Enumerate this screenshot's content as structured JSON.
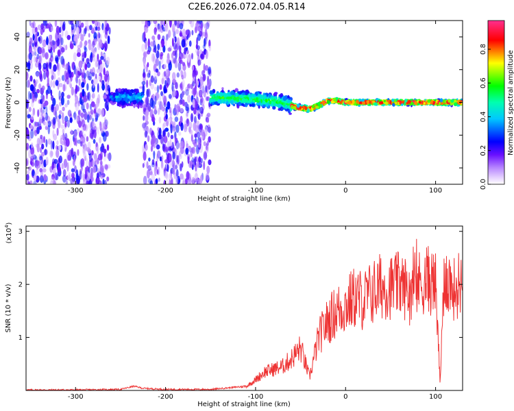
{
  "page_title": "C2E6.2026.072.04.05.R14",
  "colors": {
    "snr_line": "#ee3333",
    "spectrogram_low": "#7a00ff",
    "colorbar_stops": [
      "#ffffff",
      "#d9b8ff",
      "#a060ff",
      "#5a00ff",
      "#0000ff",
      "#00ffff",
      "#00ff00",
      "#ffff00",
      "#ff0000",
      "#ff2f8f"
    ]
  },
  "chart_data": [
    {
      "type": "heatmap",
      "title": "C2E6.2026.072.04.05.R14",
      "xlabel": "Height of straight line (km)",
      "ylabel": "Frequency (Hz)",
      "xlim": [
        -355,
        130
      ],
      "ylim": [
        -50,
        50
      ],
      "x_ticks": [
        -300,
        -200,
        -100,
        0,
        100
      ],
      "y_ticks": [
        -40,
        -20,
        0,
        20,
        40
      ],
      "colorbar": {
        "label": "Normalized spectral amplitude",
        "range": [
          0,
          0.97
        ],
        "ticks": [
          0.0,
          0.2,
          0.4,
          0.6,
          0.8
        ]
      },
      "regions": [
        {
          "x": [
            -355,
            -262
          ],
          "f_spread": 50,
          "amplitude": 0.2,
          "note": "scattered"
        },
        {
          "x": [
            -262,
            -255
          ],
          "f_spread": 8,
          "amplitude": 0.25
        },
        {
          "x": [
            -255,
            -225
          ],
          "f_spread": 12,
          "amplitude": 0.3
        },
        {
          "x": [
            -225,
            -150
          ],
          "f_spread": 50,
          "amplitude": 0.2,
          "note": "scattered"
        },
        {
          "x": [
            -150,
            -60
          ],
          "f_spread": 10,
          "amplitude": 0.45
        },
        {
          "x": [
            -60,
            130
          ],
          "f_spread": 3,
          "amplitude": 0.7
        }
      ],
      "center_frequency": [
        {
          "x": -150,
          "f": 3
        },
        {
          "x": -100,
          "f": 2
        },
        {
          "x": -70,
          "f": 0
        },
        {
          "x": -55,
          "f": -3
        },
        {
          "x": -40,
          "f": -4
        },
        {
          "x": -30,
          "f": -2
        },
        {
          "x": -20,
          "f": 1
        },
        {
          "x": -10,
          "f": 1
        },
        {
          "x": 0,
          "f": 0
        },
        {
          "x": 50,
          "f": 0
        },
        {
          "x": 130,
          "f": 0
        }
      ]
    },
    {
      "type": "line",
      "xlabel": "Height of straight line (km)",
      "ylabel": "SNR (10 * v/v)",
      "y_multiplier": "(x10",
      "y_multiplier_exp": "4",
      "xlim": [
        -355,
        130
      ],
      "ylim": [
        0,
        3.1
      ],
      "x_ticks": [
        -300,
        -200,
        -100,
        0,
        100
      ],
      "y_ticks": [
        1,
        2,
        3
      ],
      "series": [
        {
          "color": "#ee3333",
          "x": [
            -355,
            -300,
            -250,
            -235,
            -225,
            -200,
            -150,
            -110,
            -100,
            -90,
            -70,
            -60,
            -50,
            -40,
            -30,
            -20,
            -10,
            0,
            10,
            20,
            30,
            40,
            50,
            60,
            70,
            80,
            90,
            100,
            105,
            110,
            120,
            130
          ],
          "y": [
            0.01,
            0.01,
            0.02,
            0.08,
            0.04,
            0.02,
            0.02,
            0.08,
            0.2,
            0.35,
            0.45,
            0.6,
            0.8,
            0.25,
            1.0,
            1.3,
            1.5,
            1.6,
            1.75,
            1.7,
            1.85,
            1.95,
            1.95,
            2.0,
            1.9,
            2.0,
            2.1,
            2.0,
            0.15,
            2.2,
            1.9,
            2.1
          ]
        }
      ]
    }
  ]
}
